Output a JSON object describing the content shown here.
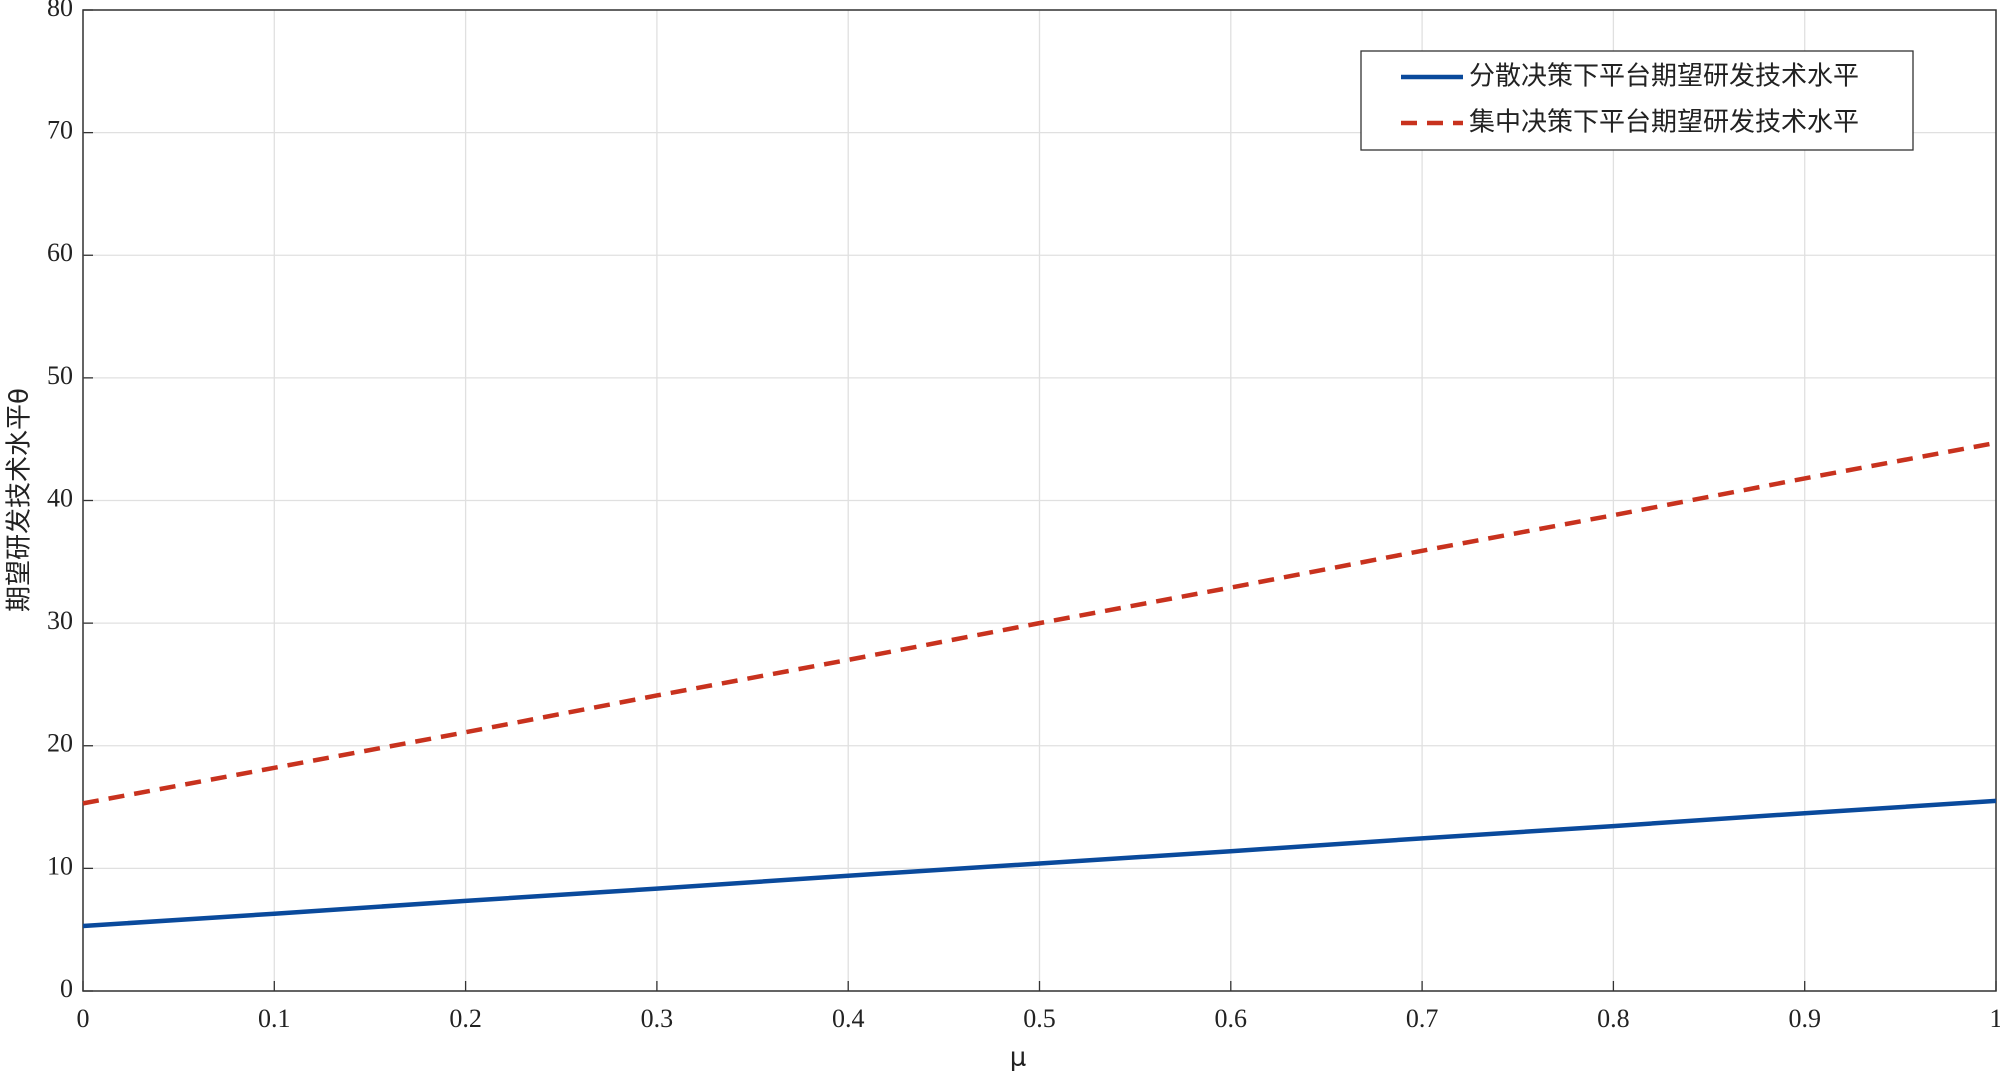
{
  "chart_data": {
    "type": "line",
    "x_label": "μ",
    "y_label": "期望研发技术水平θ",
    "x": [
      0,
      0.1,
      0.2,
      0.3,
      0.4,
      0.5,
      0.6,
      0.7,
      0.8,
      0.9,
      1
    ],
    "series": [
      {
        "name": "分散决策下平台期望研发技术水平",
        "color": "#0a4a9c",
        "dash": "solid",
        "values": [
          5.3,
          6.3,
          7.35,
          8.35,
          9.4,
          10.4,
          11.4,
          12.45,
          13.45,
          14.5,
          15.5
        ]
      },
      {
        "name": "集中决策下平台期望研发技术水平",
        "color": "#c8321e",
        "dash": "dashed",
        "values": [
          15.3,
          18.2,
          21.1,
          24.1,
          27.0,
          30.0,
          32.9,
          35.9,
          38.8,
          41.8,
          44.7
        ]
      }
    ],
    "xlim": [
      0,
      1
    ],
    "xticks": [
      0,
      0.1,
      0.2,
      0.3,
      0.4,
      0.5,
      0.6,
      0.7,
      0.8,
      0.9,
      1
    ],
    "ylim": [
      0,
      80
    ],
    "yticks": [
      0,
      10,
      20,
      30,
      40,
      50,
      60,
      70,
      80
    ],
    "grid": true,
    "legend": "upper right"
  }
}
